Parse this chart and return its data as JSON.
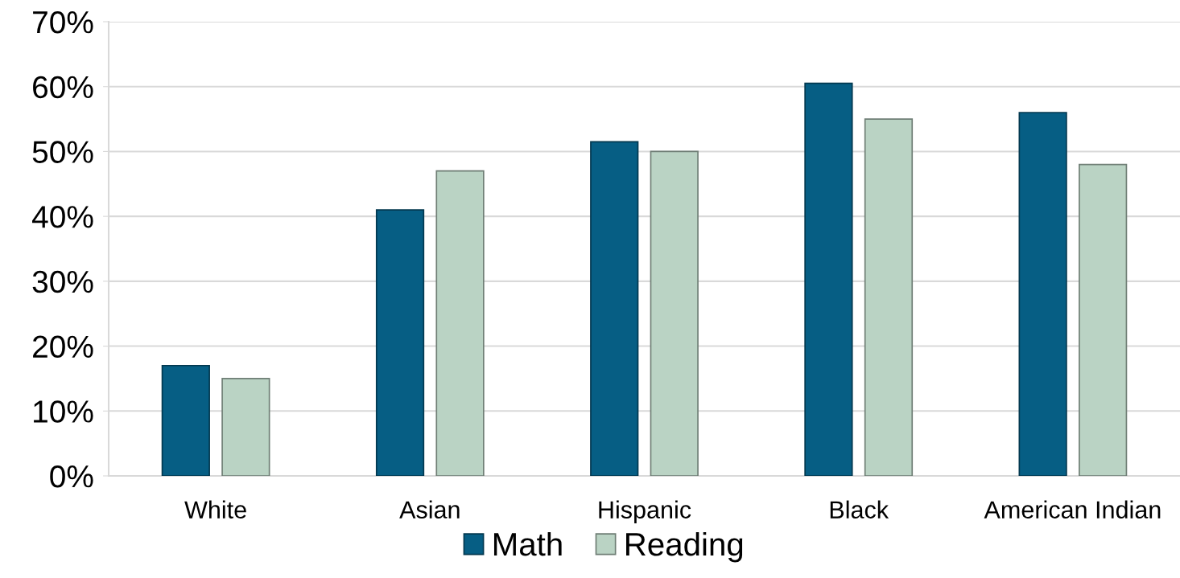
{
  "chart_data": {
    "type": "bar",
    "categories": [
      "White",
      "Asian",
      "Hispanic",
      "Black",
      "American Indian"
    ],
    "series": [
      {
        "name": "Math",
        "color": "#065e84",
        "values": [
          17,
          41,
          51.5,
          60.5,
          56
        ]
      },
      {
        "name": "Reading",
        "color": "#bad3c4",
        "values": [
          15,
          47,
          50,
          55,
          48
        ]
      }
    ],
    "ylim": [
      0,
      70
    ],
    "yticks": [
      {
        "value": 0,
        "label": "0%"
      },
      {
        "value": 10,
        "label": "10%"
      },
      {
        "value": 20,
        "label": "20%"
      },
      {
        "value": 30,
        "label": "30%"
      },
      {
        "value": 40,
        "label": "40%"
      },
      {
        "value": 50,
        "label": "50%"
      },
      {
        "value": 60,
        "label": "60%"
      },
      {
        "value": 70,
        "label": "70%"
      }
    ],
    "grid": "y",
    "legend": "bottom"
  }
}
